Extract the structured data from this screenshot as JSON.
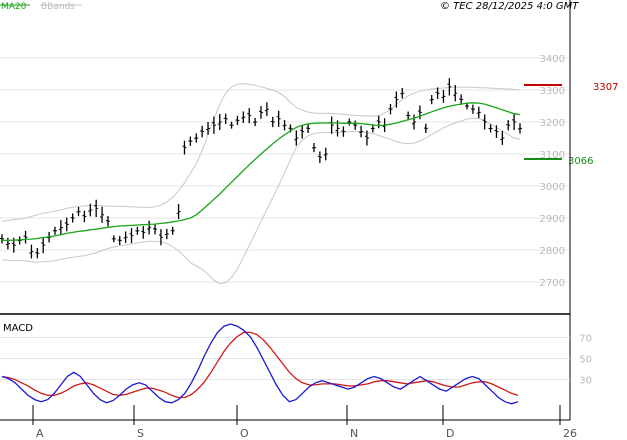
{
  "legend": {
    "ma_label": "MA20",
    "bb_label": "BBands",
    "copyright": "© TEC 28/12/2025 4:0 GMT"
  },
  "macd_label": "MACD",
  "levels": {
    "resistance": "3307",
    "support": "3066"
  },
  "colors": {
    "price_bars": "#000000",
    "ma20": "#1aa51a",
    "bbands": "#c8c8c8",
    "macd": "#1a1ad0",
    "signal": "#d01a1a",
    "resistance": "#c00000",
    "support": "#1a8a1a",
    "grid": "#e4e4e4"
  },
  "chart_data": [
    {
      "type": "line",
      "chart": "price",
      "yticks": [
        "3400",
        "3300",
        "3200",
        "3100",
        "3000",
        "2900",
        "2800",
        "2700"
      ],
      "ylim": [
        2600,
        3450
      ],
      "xticks": [
        "A",
        "S",
        "O",
        "N",
        "D",
        "26"
      ],
      "series": [
        {
          "name": "MA20",
          "values": [
            2830,
            2830,
            2831,
            2832,
            2833,
            2834,
            2836,
            2839,
            2841,
            2844,
            2848,
            2852,
            2855,
            2858,
            2860,
            2863,
            2865,
            2868,
            2871,
            2873,
            2875,
            2876,
            2877,
            2878,
            2879,
            2880,
            2881,
            2883,
            2885,
            2888,
            2891,
            2895,
            2900,
            2910,
            2925,
            2942,
            2958,
            2975,
            2994,
            3012,
            3030,
            3048,
            3066,
            3083,
            3100,
            3116,
            3132,
            3147,
            3160,
            3172,
            3183,
            3190,
            3194,
            3196,
            3197,
            3197,
            3197,
            3197,
            3196,
            3196,
            3196,
            3195,
            3193,
            3191,
            3189,
            3190,
            3193,
            3197,
            3202,
            3207,
            3212,
            3218,
            3225,
            3232,
            3238,
            3244,
            3249,
            3253,
            3256,
            3259,
            3260,
            3259,
            3256,
            3250,
            3244,
            3238,
            3232,
            3226,
            3223
          ]
        },
        {
          "name": "BBands",
          "values": [
            2890,
            2892,
            2895,
            2897,
            2900,
            2905,
            2910,
            2915,
            2918,
            2921,
            2925,
            2930,
            2933,
            2936,
            2938,
            2939,
            2939,
            2938,
            2937,
            2937,
            2937,
            2936,
            2935,
            2934,
            2933,
            2933,
            2935,
            2940,
            2950,
            2965,
            2985,
            3010,
            3040,
            3070,
            3110,
            3160,
            3210,
            3255,
            3290,
            3310,
            3318,
            3320,
            3318,
            3315,
            3310,
            3305,
            3300,
            3292,
            3280,
            3262,
            3245,
            3237,
            3231,
            3228,
            3227,
            3227,
            3227,
            3226,
            3224,
            3222,
            3221,
            3220,
            3219,
            3218,
            3220,
            3228,
            3240,
            3255,
            3270,
            3282,
            3290,
            3296,
            3300,
            3303,
            3305,
            3306,
            3308,
            3309,
            3309,
            3309,
            3308,
            3307,
            3307,
            3306,
            3305,
            3304,
            3303,
            3302,
            3300
          ]
        },
        {
          "name": "BBands lower",
          "values": [
            2770,
            2768,
            2767,
            2767,
            2766,
            2763,
            2762,
            2763,
            2764,
            2767,
            2771,
            2774,
            2777,
            2780,
            2782,
            2787,
            2791,
            2798,
            2805,
            2809,
            2813,
            2816,
            2819,
            2822,
            2825,
            2827,
            2827,
            2826,
            2820,
            2811,
            2797,
            2780,
            2760,
            2750,
            2740,
            2724,
            2706,
            2695,
            2698,
            2714,
            2742,
            2776,
            2814,
            2851,
            2890,
            2927,
            2964,
            3002,
            3040,
            3082,
            3121,
            3143,
            3157,
            3164,
            3167,
            3167,
            3167,
            3168,
            3168,
            3170,
            3171,
            3170,
            3167,
            3164,
            3158,
            3152,
            3146,
            3139,
            3134,
            3132,
            3134,
            3140,
            3150,
            3161,
            3171,
            3182,
            3190,
            3197,
            3203,
            3209,
            3212,
            3211,
            3205,
            3194,
            3183,
            3172,
            3161,
            3150,
            3146
          ]
        }
      ]
    },
    {
      "type": "line",
      "chart": "MACD",
      "yticks": [
        "70",
        "50",
        "30"
      ],
      "series": [
        {
          "name": "MACD",
          "values": [
            30,
            28,
            24,
            18,
            12,
            8,
            6,
            8,
            14,
            22,
            30,
            34,
            30,
            22,
            14,
            8,
            5,
            7,
            12,
            18,
            22,
            24,
            22,
            16,
            10,
            6,
            5,
            8,
            14,
            24,
            36,
            50,
            62,
            72,
            78,
            80,
            78,
            74,
            68,
            58,
            46,
            34,
            22,
            12,
            6,
            8,
            14,
            20,
            24,
            26,
            24,
            22,
            20,
            18,
            20,
            24,
            28,
            30,
            28,
            24,
            20,
            18,
            22,
            26,
            30,
            26,
            22,
            18,
            16,
            20,
            24,
            28,
            30,
            28,
            22,
            16,
            10,
            6,
            4,
            6
          ],
          "note": ""
        },
        {
          "name": "Signal",
          "values": [
            30,
            29,
            27,
            24,
            21,
            17,
            14,
            12,
            12,
            14,
            17,
            21,
            23,
            24,
            22,
            19,
            16,
            13,
            12,
            13,
            15,
            17,
            19,
            19,
            17,
            15,
            12,
            10,
            10,
            13,
            18,
            25,
            34,
            44,
            54,
            62,
            68,
            72,
            72,
            70,
            65,
            58,
            50,
            42,
            34,
            28,
            24,
            22,
            22,
            23,
            23,
            23,
            22,
            21,
            21,
            22,
            23,
            25,
            26,
            26,
            25,
            24,
            23,
            24,
            25,
            26,
            25,
            23,
            21,
            20,
            20,
            22,
            24,
            25,
            25,
            23,
            20,
            17,
            14,
            12
          ],
          "note": ""
        }
      ]
    }
  ]
}
